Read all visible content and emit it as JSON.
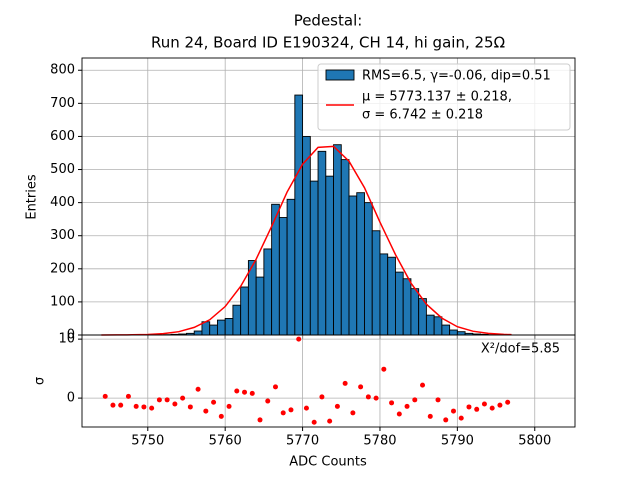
{
  "chart_data": [
    {
      "type": "histogram",
      "title": [
        "Pedestal:",
        "Run 24, Board ID E190324, CH 14, hi gain, 25Ω"
      ],
      "ylabel": "Entries",
      "name": "RMS=6.5, γ=-0.06, dip=0.51",
      "color": "#1f77b4",
      "bins": [
        5744,
        5745,
        5746,
        5747,
        5748,
        5749,
        5750,
        5751,
        5752,
        5753,
        5754,
        5755,
        5756,
        5757,
        5758,
        5759,
        5760,
        5761,
        5762,
        5763,
        5764,
        5765,
        5766,
        5767,
        5768,
        5769,
        5770,
        5771,
        5772,
        5773,
        5774,
        5775,
        5776,
        5777,
        5778,
        5779,
        5780,
        5781,
        5782,
        5783,
        5784,
        5785,
        5786,
        5787,
        5788,
        5789,
        5790,
        5791,
        5792,
        5793,
        5794,
        5795,
        5796,
        5797
      ],
      "values": [
        0,
        0,
        0,
        0,
        0,
        0,
        0,
        0,
        1,
        2,
        3,
        5,
        12,
        40,
        30,
        45,
        50,
        90,
        145,
        225,
        175,
        260,
        395,
        355,
        410,
        725,
        600,
        465,
        555,
        480,
        575,
        530,
        420,
        430,
        400,
        315,
        245,
        235,
        190,
        170,
        140,
        110,
        60,
        55,
        30,
        15,
        10,
        5,
        3,
        2,
        1,
        1,
        0
      ],
      "fit": {
        "name": [
          "μ = 5773.137 ± 0.218,",
          "σ = 6.742 ± 0.218"
        ],
        "color": "#ff0000",
        "x": [
          5744,
          5746,
          5748,
          5750,
          5752,
          5754,
          5756,
          5758,
          5760,
          5762,
          5764,
          5766,
          5768,
          5770,
          5772,
          5774,
          5776,
          5778,
          5780,
          5782,
          5784,
          5786,
          5788,
          5790,
          5792,
          5794,
          5796,
          5797
        ],
        "values": [
          0.05,
          0.2,
          0.6,
          1.6,
          4.2,
          10,
          23,
          46,
          86,
          147,
          229,
          328,
          432,
          516,
          567,
          570,
          525,
          445,
          341,
          243,
          157,
          93,
          51,
          25,
          11.5,
          4.8,
          1.8,
          1
        ]
      },
      "xlim": [
        5741.5,
        5805.2
      ],
      "ylim": [
        0,
        837
      ],
      "xticks": [
        5750,
        5760,
        5770,
        5780,
        5790,
        5800
      ],
      "yticks": [
        0,
        100,
        200,
        300,
        400,
        500,
        600,
        700,
        800
      ],
      "grid": true,
      "legend": "upper right"
    },
    {
      "type": "scatter",
      "xlabel": "ADC Counts",
      "ylabel": "σ",
      "annotation": "X²/dof=5.85",
      "color": "#ff0000",
      "x": [
        5744.5,
        5745.5,
        5746.5,
        5747.5,
        5748.5,
        5749.5,
        5750.5,
        5751.5,
        5752.5,
        5753.5,
        5754.5,
        5755.5,
        5756.5,
        5757.5,
        5758.5,
        5759.5,
        5760.5,
        5761.5,
        5762.5,
        5763.5,
        5764.5,
        5765.5,
        5766.5,
        5767.5,
        5768.5,
        5769.5,
        5770.5,
        5771.5,
        5772.5,
        5773.5,
        5774.5,
        5775.5,
        5776.5,
        5777.5,
        5778.5,
        5779.5,
        5780.5,
        5781.5,
        5782.5,
        5783.5,
        5784.5,
        5785.5,
        5786.5,
        5787.5,
        5788.5,
        5789.5,
        5790.5,
        5791.5,
        5792.5,
        5793.5,
        5794.5,
        5795.5,
        5796.5
      ],
      "values": [
        0.3,
        -1.2,
        -1.2,
        0.3,
        -1.4,
        -1.5,
        -1.7,
        -0.3,
        -0.3,
        -1.0,
        0,
        -1.5,
        1.5,
        -2.2,
        -0.7,
        -3.1,
        -1.4,
        1.2,
        1.0,
        0.8,
        -3.7,
        -0.5,
        1.9,
        -2.5,
        -2.0,
        10.0,
        -1.7,
        -4.1,
        0.2,
        -3.9,
        -1.4,
        2.5,
        -2.5,
        1.9,
        0.2,
        0,
        4.9,
        -0.8,
        -2.7,
        -1.4,
        -0.3,
        2.2,
        -3.1,
        -0.3,
        -3.7,
        -2.2,
        -3.4,
        -1.5,
        -1.9,
        -1.0,
        -1.7,
        -1.2,
        -0.7
      ],
      "xlim": [
        5741.5,
        5805.2
      ],
      "ylim": [
        -4.9,
        10.7
      ],
      "xticks": [
        5750,
        5760,
        5770,
        5780,
        5790,
        5800
      ],
      "yticks": [
        0,
        10
      ],
      "grid": true
    }
  ]
}
